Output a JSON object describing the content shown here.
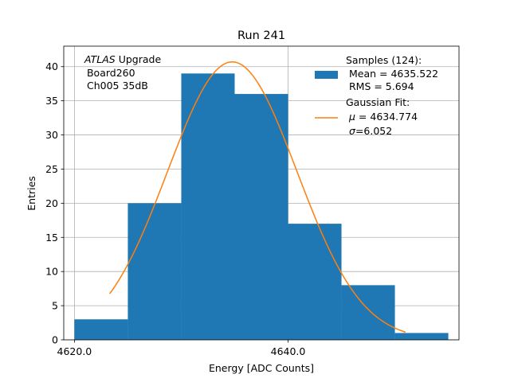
{
  "chart_data": {
    "type": "histogram",
    "title": "Run 241",
    "xlabel": "Energy [ADC Counts]",
    "ylabel": "Entries",
    "xlim": [
      4619.0,
      4656.0
    ],
    "ylim": [
      0,
      43
    ],
    "x_ticks": [
      4620.0,
      4640.0
    ],
    "x_tick_labels": [
      "4620.0",
      "4640.0"
    ],
    "y_ticks": [
      0,
      5,
      10,
      15,
      20,
      25,
      30,
      35,
      40
    ],
    "y_tick_labels": [
      "0",
      "5",
      "10",
      "15",
      "20",
      "25",
      "30",
      "35",
      "40"
    ],
    "grid": true,
    "bar_color": "#1f77b4",
    "fit_color": "#ff7f0e",
    "bins": [
      {
        "x0": 4620.0,
        "x1": 4625.0,
        "count": 3
      },
      {
        "x0": 4625.0,
        "x1": 4630.0,
        "count": 20
      },
      {
        "x0": 4630.0,
        "x1": 4635.0,
        "count": 39
      },
      {
        "x0": 4635.0,
        "x1": 4640.0,
        "count": 36
      },
      {
        "x0": 4640.0,
        "x1": 4645.0,
        "count": 17
      },
      {
        "x0": 4645.0,
        "x1": 4650.0,
        "count": 8
      },
      {
        "x0": 4650.0,
        "x1": 4655.0,
        "count": 1
      }
    ],
    "fit": {
      "type": "gaussian",
      "mu": 4634.774,
      "sigma": 6.052,
      "amplitude": 40.7,
      "x_range": [
        4623.3,
        4651.0
      ]
    },
    "annotation": {
      "italic": "ATLAS",
      "title_rest": " Upgrade",
      "line2": " Board260",
      "line3": " Ch005 35dB"
    },
    "legend": {
      "position": "top-right",
      "samples_title": "Samples (124):",
      "samples_mean": " Mean = 4635.522",
      "samples_rms": " RMS = 5.694",
      "fit_title": "Gaussian Fit:",
      "fit_mu_symbol": "μ",
      "fit_mu_rest": " = 4634.774",
      "fit_sigma_symbol": "σ",
      "fit_sigma_rest": "=6.052"
    }
  }
}
